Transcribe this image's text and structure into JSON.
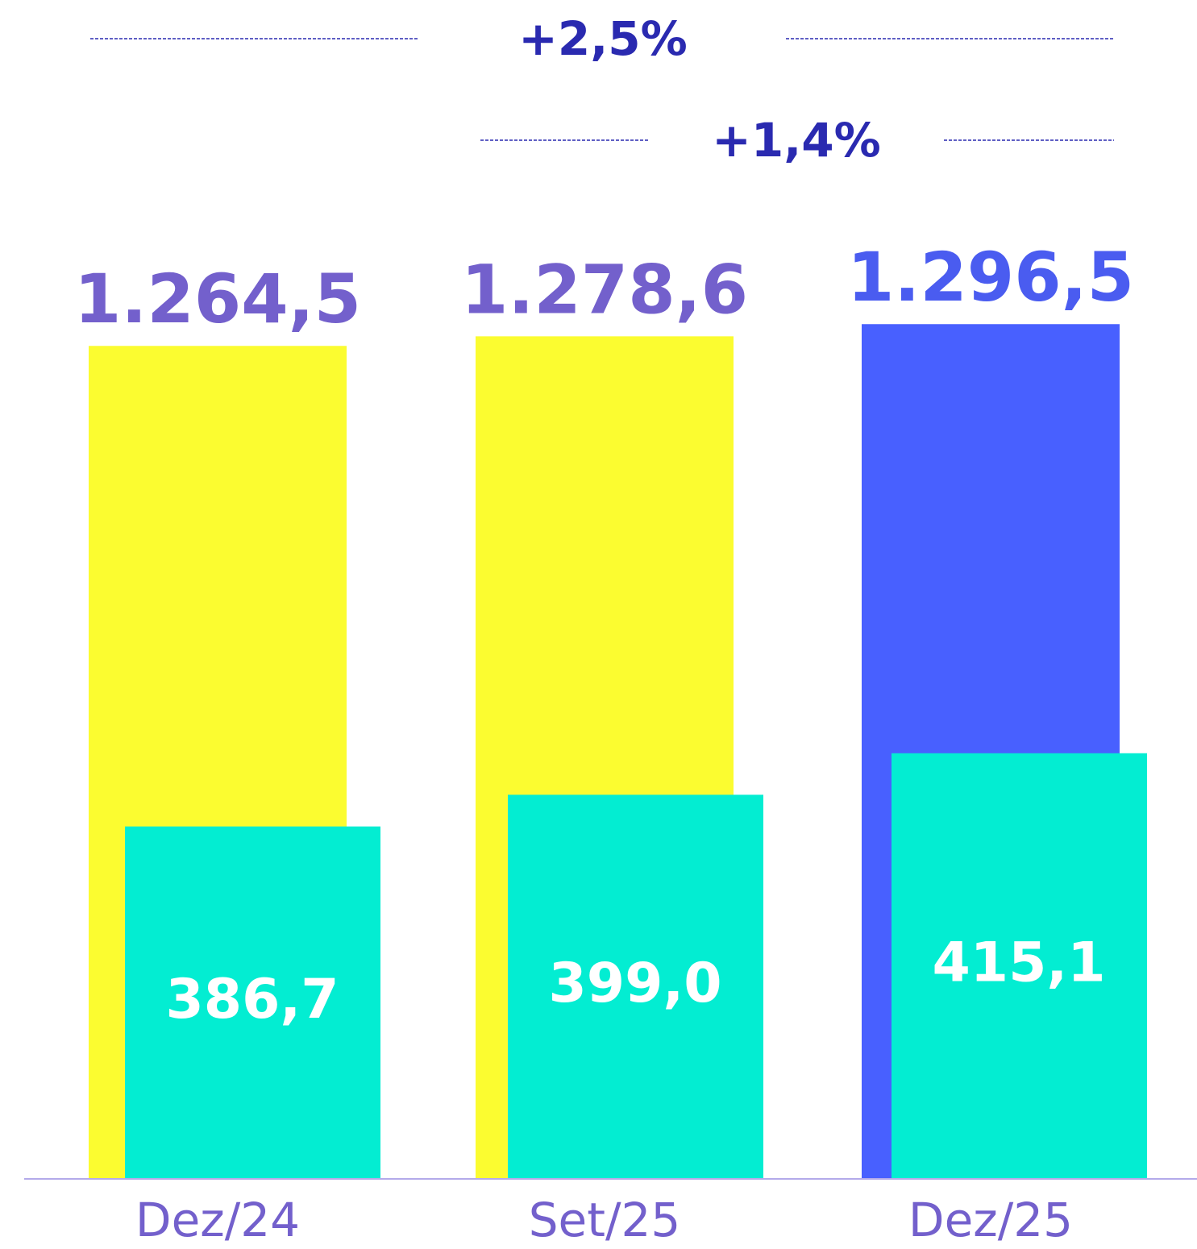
{
  "chart_data": {
    "type": "overlap-bar",
    "categories": [
      "Dez/24",
      "Set/25",
      "Dez/25"
    ],
    "series": [
      {
        "colors": [
          "#fbfc30",
          "#fbfc30",
          "#4860ff"
        ],
        "label_colors": [
          "#7360cc",
          "#7360cc",
          "#4a5cf0"
        ],
        "values": [
          1264.5,
          1278.6,
          1296.5
        ],
        "value_labels": [
          "1.264,5",
          "1.278,6",
          "1.296,5"
        ],
        "ylim": [
          40,
          1465
        ]
      },
      {
        "color": "#03edd2",
        "label_color": "#ffffff",
        "values": [
          386.7,
          399.0,
          415.1
        ],
        "value_labels": [
          "386,7",
          "399,0",
          "415,1"
        ],
        "ylim": [
          250,
          626
        ]
      }
    ],
    "annotations": [
      {
        "text": "+2,5%"
      },
      {
        "text": "+1,4%"
      }
    ]
  }
}
